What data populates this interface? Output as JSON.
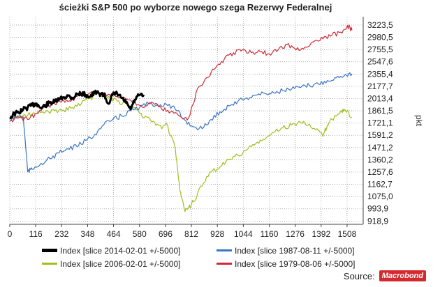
{
  "chart_data": {
    "type": "line",
    "title": "ścieżki S&P 500 po wyborze nowego szega Rezerwy Federalnej",
    "ylabel": "pkt",
    "y_scale": "log",
    "xlim": [
      0,
      1580
    ],
    "ylim": [
      900,
      3400
    ],
    "x_ticks": [
      0,
      116,
      232,
      348,
      464,
      580,
      696,
      812,
      928,
      1044,
      1160,
      1276,
      1392,
      1508
    ],
    "y_ticks": [
      "3223,5",
      "2980,5",
      "2755,5",
      "2547,6",
      "2355,4",
      "2177,7",
      "2013,4",
      "1861,5",
      "1721,1",
      "1591,2",
      "1471,2",
      "1360,2",
      "1257,6",
      "1162,7",
      "1075,0",
      "993,9",
      "918,9"
    ],
    "grid": true,
    "legend_position": "bottom",
    "series": [
      {
        "name": "Index [slice 2014-02-01 +/-5000]",
        "color": "#000000",
        "x": [
          0,
          20,
          40,
          60,
          80,
          100,
          120,
          140,
          160,
          180,
          200,
          220,
          240,
          260,
          280,
          300,
          320,
          340,
          360,
          380,
          400,
          420,
          440,
          460,
          480,
          500,
          520,
          540,
          560,
          580,
          600
        ],
        "y": [
          1780,
          1830,
          1840,
          1880,
          1900,
          1930,
          1950,
          1890,
          1930,
          1960,
          1970,
          2000,
          2030,
          2050,
          2020,
          2070,
          2080,
          2060,
          2040,
          2090,
          2080,
          2070,
          1950,
          2060,
          2080,
          2020,
          1960,
          1880,
          2000,
          2060,
          2040
        ]
      },
      {
        "name": "Index [slice 1987-08-11 +/-5000]",
        "color": "#3a75c4",
        "x": [
          0,
          20,
          40,
          60,
          80,
          100,
          140,
          180,
          220,
          260,
          300,
          340,
          380,
          420,
          460,
          500,
          540,
          580,
          620,
          660,
          700,
          740,
          780,
          820,
          860,
          900,
          940,
          980,
          1020,
          1060,
          1100,
          1140,
          1180,
          1220,
          1260,
          1300,
          1340,
          1380,
          1420,
          1460,
          1500,
          1530
        ],
        "y": [
          1750,
          1780,
          1800,
          1790,
          1260,
          1280,
          1330,
          1370,
          1420,
          1460,
          1480,
          1540,
          1600,
          1700,
          1760,
          1800,
          1860,
          1900,
          1950,
          1930,
          1940,
          1880,
          1760,
          1680,
          1660,
          1760,
          1850,
          1920,
          1980,
          2020,
          2060,
          2080,
          2090,
          2120,
          2140,
          2160,
          2190,
          2210,
          2260,
          2300,
          2350,
          2360
        ]
      },
      {
        "name": "Index [slice 2006-02-01 +/-5000]",
        "color": "#9ebf1f",
        "x": [
          0,
          40,
          80,
          120,
          160,
          200,
          240,
          280,
          320,
          360,
          400,
          440,
          480,
          520,
          560,
          600,
          640,
          680,
          700,
          740,
          760,
          780,
          800,
          820,
          860,
          900,
          940,
          980,
          1020,
          1060,
          1100,
          1140,
          1180,
          1220,
          1260,
          1300,
          1340,
          1380,
          1400,
          1420,
          1440,
          1480,
          1500,
          1530
        ],
        "y": [
          1780,
          1790,
          1810,
          1830,
          1850,
          1860,
          1870,
          1900,
          1950,
          2020,
          2080,
          2040,
          1980,
          1950,
          1900,
          1780,
          1740,
          1660,
          1720,
          1460,
          1120,
          990,
          1000,
          1040,
          1150,
          1260,
          1300,
          1360,
          1400,
          1450,
          1510,
          1550,
          1620,
          1670,
          1700,
          1730,
          1710,
          1640,
          1580,
          1700,
          1760,
          1860,
          1870,
          1780
        ]
      },
      {
        "name": "Index [slice 1979-08-06 +/-5000]",
        "color": "#cc2b36",
        "x": [
          0,
          40,
          80,
          120,
          160,
          200,
          240,
          280,
          320,
          360,
          400,
          440,
          480,
          520,
          560,
          600,
          640,
          680,
          720,
          760,
          800,
          840,
          880,
          920,
          960,
          1000,
          1040,
          1080,
          1120,
          1160,
          1200,
          1240,
          1280,
          1320,
          1360,
          1400,
          1440,
          1480,
          1510,
          1530
        ],
        "y": [
          1740,
          1780,
          1760,
          1830,
          1900,
          1950,
          1990,
          2010,
          2050,
          2090,
          2080,
          2070,
          2040,
          2010,
          1970,
          1900,
          1960,
          1880,
          1850,
          1800,
          1780,
          2150,
          2300,
          2450,
          2600,
          2700,
          2750,
          2700,
          2720,
          2680,
          2750,
          2850,
          2750,
          2800,
          2900,
          2950,
          3020,
          3080,
          3210,
          3120
        ]
      }
    ]
  },
  "source": {
    "label": "Source:",
    "logo_text": "Macrobond"
  }
}
